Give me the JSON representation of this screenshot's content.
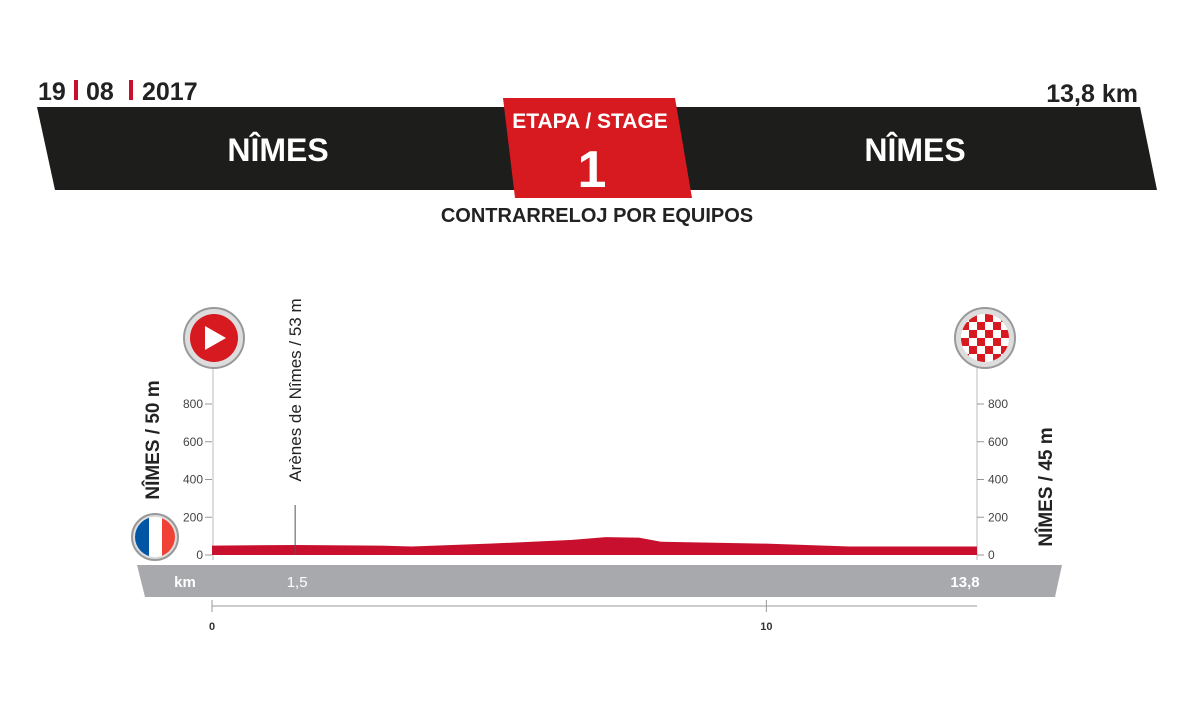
{
  "header": {
    "date": [
      "19",
      "08",
      "2017"
    ],
    "distance": "13,8 km",
    "start": "NÎMES",
    "finish": "NÎMES",
    "stage_label": "ETAPA / STAGE",
    "stage_number": "1",
    "stage_type": "CONTRARRELOJ POR EQUIPOS"
  },
  "chart_data": {
    "type": "area",
    "color": "#c8102e",
    "start_label": "NÎMES / 50 m",
    "finish_label": "NÎMES / 45 m",
    "landmark": {
      "label": "Arènes de Nîmes / 53 m",
      "x": 1.5
    },
    "km_label": "km",
    "km_markers": [
      {
        "value": 1.5,
        "label": "1,5"
      },
      {
        "value": 13.8,
        "label": "13,8"
      }
    ],
    "x": [
      0,
      1.5,
      3,
      3.6,
      5,
      6.5,
      7.1,
      7.7,
      8.1,
      10,
      11.5,
      13.8
    ],
    "values": [
      50,
      53,
      50,
      45,
      60,
      80,
      95,
      92,
      70,
      60,
      45,
      45
    ],
    "xlim": [
      0,
      13.8
    ],
    "xticks": [
      0,
      10
    ],
    "ylim": [
      0,
      800
    ],
    "yticks": [
      0,
      200,
      400,
      600,
      800
    ]
  }
}
